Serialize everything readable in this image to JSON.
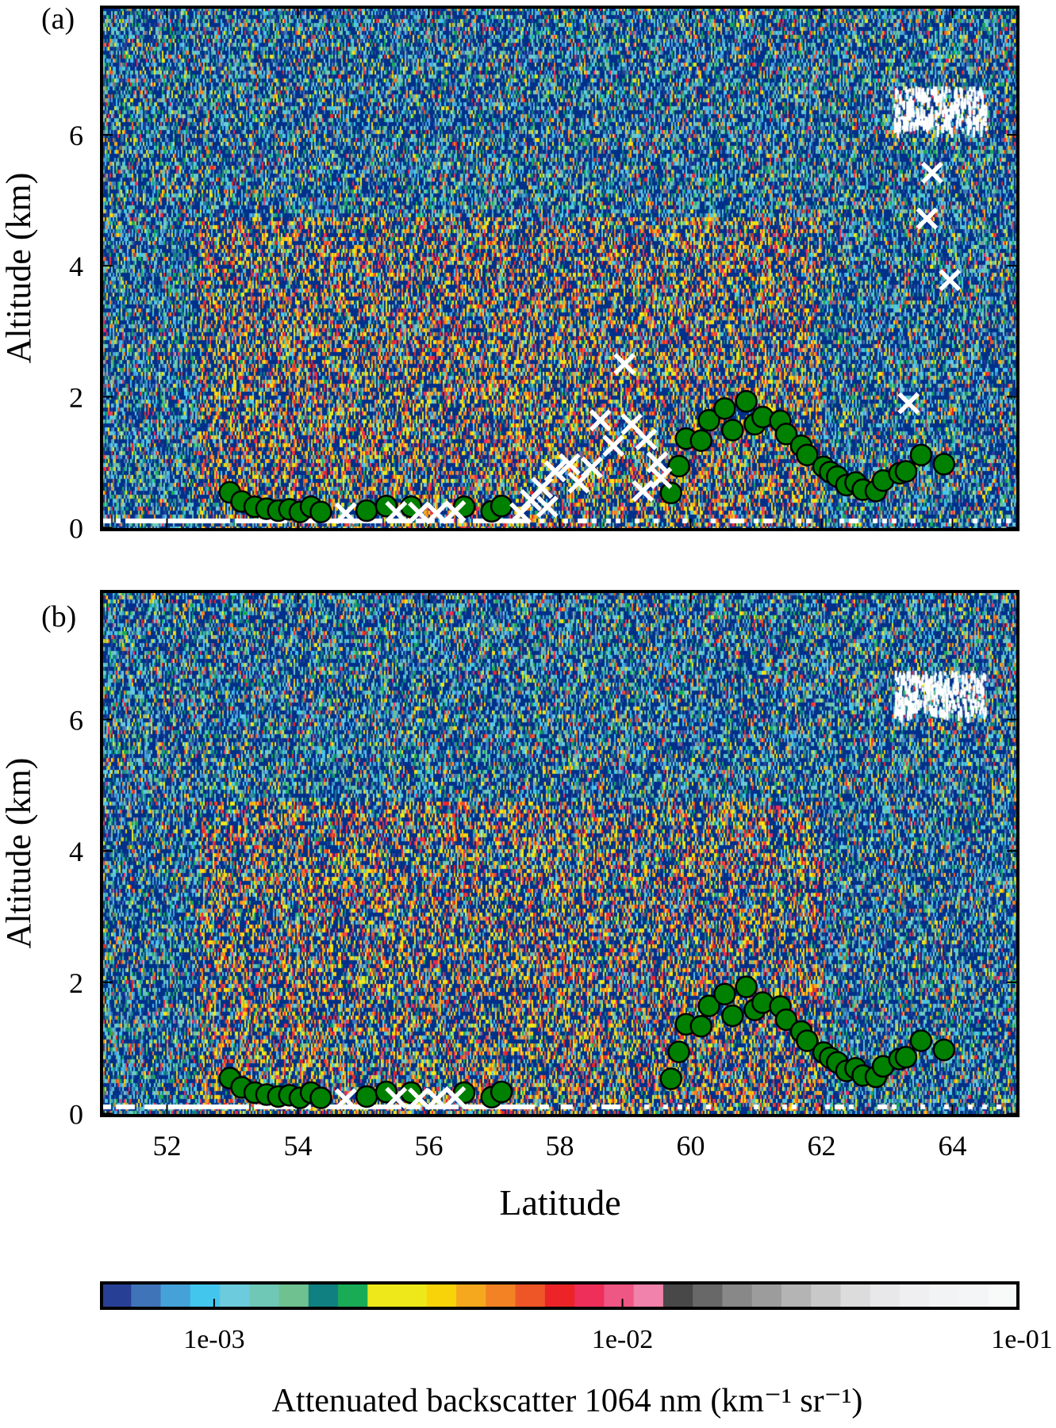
{
  "chart_data": [
    {
      "type": "heatmap",
      "panel_label": "(a)",
      "xlabel": "Latitude",
      "ylabel": "Altitude (km)",
      "xlim": [
        51,
        65
      ],
      "ylim": [
        -0.03,
        7.95
      ],
      "xticks": [
        "52",
        "54",
        "56",
        "58",
        "60",
        "62",
        "64"
      ],
      "xtick_values": [
        52,
        54,
        56,
        58,
        60,
        62,
        64
      ],
      "yticks": [
        "0",
        "2",
        "4",
        "6"
      ],
      "ytick_values": [
        0,
        2,
        4,
        6
      ],
      "series": [
        {
          "name": "green circles",
          "marker": "circle",
          "color": "#008000",
          "points": [
            [
              52.96,
              0.54
            ],
            [
              53.14,
              0.4
            ],
            [
              53.34,
              0.32
            ],
            [
              53.52,
              0.29
            ],
            [
              53.7,
              0.26
            ],
            [
              53.87,
              0.28
            ],
            [
              54.03,
              0.24
            ],
            [
              54.2,
              0.32
            ],
            [
              54.35,
              0.24
            ],
            [
              55.05,
              0.26
            ],
            [
              55.35,
              0.33
            ],
            [
              55.73,
              0.32
            ],
            [
              56.54,
              0.32
            ],
            [
              56.96,
              0.25
            ],
            [
              57.11,
              0.33
            ],
            [
              59.7,
              0.53
            ],
            [
              59.82,
              0.94
            ],
            [
              59.93,
              1.36
            ],
            [
              60.16,
              1.33
            ],
            [
              60.28,
              1.64
            ],
            [
              60.52,
              1.82
            ],
            [
              60.64,
              1.49
            ],
            [
              60.85,
              1.93
            ],
            [
              60.98,
              1.58
            ],
            [
              61.1,
              1.69
            ],
            [
              61.37,
              1.63
            ],
            [
              61.46,
              1.43
            ],
            [
              61.69,
              1.25
            ],
            [
              61.78,
              1.11
            ],
            [
              62.03,
              0.93
            ],
            [
              62.13,
              0.85
            ],
            [
              62.24,
              0.78
            ],
            [
              62.38,
              0.65
            ],
            [
              62.52,
              0.69
            ],
            [
              62.63,
              0.58
            ],
            [
              62.83,
              0.56
            ],
            [
              62.94,
              0.72
            ],
            [
              63.19,
              0.83
            ],
            [
              63.29,
              0.86
            ],
            [
              63.52,
              1.11
            ],
            [
              63.87,
              0.97
            ]
          ]
        },
        {
          "name": "white crosses",
          "marker": "x",
          "color": "#ffffff",
          "points": [
            [
              63.69,
              5.42
            ],
            [
              63.61,
              4.72
            ],
            [
              63.96,
              3.78
            ],
            [
              63.33,
              1.9
            ],
            [
              58.99,
              2.5
            ],
            [
              58.62,
              1.64
            ],
            [
              59.1,
              1.58
            ],
            [
              59.32,
              1.35
            ],
            [
              58.82,
              1.25
            ],
            [
              59.49,
              1.0
            ],
            [
              58.49,
              0.92
            ],
            [
              58.15,
              0.97
            ],
            [
              57.93,
              0.86
            ],
            [
              58.29,
              0.69
            ],
            [
              57.73,
              0.61
            ],
            [
              57.56,
              0.42
            ],
            [
              57.81,
              0.32
            ],
            [
              57.4,
              0.22
            ],
            [
              59.27,
              0.56
            ],
            [
              59.55,
              0.76
            ],
            [
              54.73,
              0.22
            ],
            [
              55.5,
              0.24
            ],
            [
              55.85,
              0.23
            ],
            [
              56.12,
              0.22
            ],
            [
              56.4,
              0.25
            ]
          ]
        }
      ]
    },
    {
      "type": "heatmap",
      "panel_label": "(b)",
      "xlabel": "Latitude",
      "ylabel": "Altitude (km)",
      "xlim": [
        51,
        65
      ],
      "ylim": [
        -0.03,
        7.95
      ],
      "xticks": [
        "52",
        "54",
        "56",
        "58",
        "60",
        "62",
        "64"
      ],
      "xtick_values": [
        52,
        54,
        56,
        58,
        60,
        62,
        64
      ],
      "yticks": [
        "0",
        "2",
        "4",
        "6"
      ],
      "ytick_values": [
        0,
        2,
        4,
        6
      ],
      "series": [
        {
          "name": "green circles",
          "marker": "circle",
          "color": "#008000",
          "points": [
            [
              52.96,
              0.54
            ],
            [
              53.14,
              0.4
            ],
            [
              53.34,
              0.32
            ],
            [
              53.52,
              0.29
            ],
            [
              53.7,
              0.26
            ],
            [
              53.87,
              0.28
            ],
            [
              54.03,
              0.24
            ],
            [
              54.2,
              0.32
            ],
            [
              54.35,
              0.24
            ],
            [
              55.05,
              0.26
            ],
            [
              55.35,
              0.33
            ],
            [
              55.73,
              0.32
            ],
            [
              56.54,
              0.32
            ],
            [
              56.96,
              0.25
            ],
            [
              57.11,
              0.33
            ],
            [
              59.7,
              0.53
            ],
            [
              59.82,
              0.94
            ],
            [
              59.93,
              1.36
            ],
            [
              60.16,
              1.33
            ],
            [
              60.28,
              1.64
            ],
            [
              60.52,
              1.82
            ],
            [
              60.64,
              1.49
            ],
            [
              60.85,
              1.93
            ],
            [
              60.98,
              1.58
            ],
            [
              61.1,
              1.69
            ],
            [
              61.37,
              1.63
            ],
            [
              61.46,
              1.43
            ],
            [
              61.69,
              1.25
            ],
            [
              61.78,
              1.11
            ],
            [
              62.03,
              0.93
            ],
            [
              62.13,
              0.85
            ],
            [
              62.24,
              0.78
            ],
            [
              62.38,
              0.65
            ],
            [
              62.52,
              0.69
            ],
            [
              62.63,
              0.58
            ],
            [
              62.83,
              0.56
            ],
            [
              62.94,
              0.72
            ],
            [
              63.19,
              0.83
            ],
            [
              63.29,
              0.86
            ],
            [
              63.52,
              1.11
            ],
            [
              63.87,
              0.97
            ]
          ]
        },
        {
          "name": "white crosses",
          "marker": "x",
          "color": "#ffffff",
          "points": [
            [
              54.73,
              0.22
            ],
            [
              55.5,
              0.24
            ],
            [
              55.85,
              0.23
            ],
            [
              56.12,
              0.22
            ],
            [
              56.4,
              0.25
            ]
          ]
        }
      ]
    }
  ],
  "colorbar": {
    "label": "Attenuated  backscatter 1064 nm (km⁻¹ sr⁻¹)",
    "scale": "log",
    "range": [
      0.00053,
      0.093
    ],
    "ticks": [
      "1e-03",
      "1e-02",
      "1e-01"
    ],
    "tick_values": [
      0.001,
      0.01,
      0.1
    ],
    "colors": [
      "#283f96",
      "#3f74b8",
      "#45a2d8",
      "#43c6ee",
      "#6ccbdc",
      "#6fc7b6",
      "#6fc190",
      "#108080",
      "#1aab57",
      "#eee81a",
      "#eee81a",
      "#f8d30a",
      "#f5a81e",
      "#f28223",
      "#ee5627",
      "#ec2427",
      "#ee2f5a",
      "#ee5683",
      "#f082ab",
      "#484848",
      "#686868",
      "#888888",
      "#9c9c9c",
      "#b4b4b4",
      "#c8c8c8",
      "#dcdcdc",
      "#e8e8ea",
      "#efeff1",
      "#f2f3f4",
      "#f4f5f6",
      "#f8f9f9"
    ],
    "background_color": "#00308a"
  }
}
